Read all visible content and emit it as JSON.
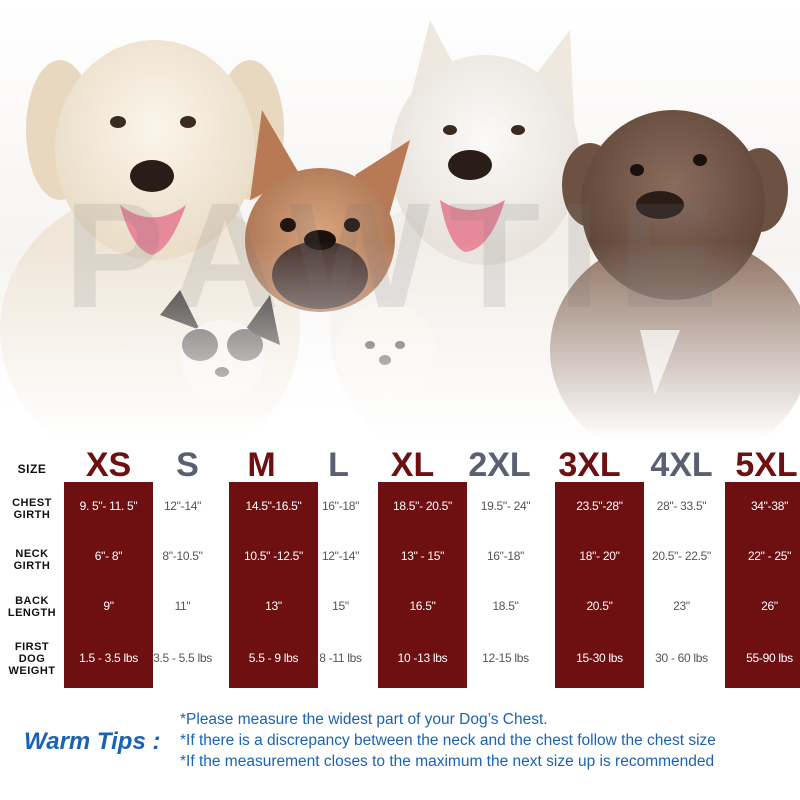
{
  "watermark": "PAWTIE",
  "table": {
    "size_label": "SIZE",
    "row_labels": {
      "chest": [
        "CHEST",
        "GIRTH"
      ],
      "neck": [
        "NECK",
        "GIRTH"
      ],
      "back": [
        "BACK",
        "LENGTH"
      ],
      "weight": [
        "FIRST",
        "DOG",
        "WEIGHT"
      ]
    },
    "sizes": [
      {
        "name": "XS",
        "chest": "9. 5\"- 11. 5\"",
        "neck": "6\"- 8\"",
        "back": "9\"",
        "weight": "1.5 - 3.5 lbs"
      },
      {
        "name": "S",
        "chest": "12\"-14\"",
        "neck": "8\"-10.5\"",
        "back": "11\"",
        "weight": "3.5 - 5.5 lbs"
      },
      {
        "name": "M",
        "chest": "14.5\"-16.5\"",
        "neck": "10.5\" -12.5\"",
        "back": "13\"",
        "weight": "5.5 - 9 lbs"
      },
      {
        "name": "L",
        "chest": "16\"-18\"",
        "neck": "12\"-14\"",
        "back": "15\"",
        "weight": "8 -11 lbs"
      },
      {
        "name": "XL",
        "chest": "18.5\"- 20.5\"",
        "neck": "13\" - 15\"",
        "back": "16.5\"",
        "weight": "10 -13 lbs"
      },
      {
        "name": "2XL",
        "chest": "19.5\"- 24\"",
        "neck": "16\"-18\"",
        "back": "18.5\"",
        "weight": "12-15 lbs"
      },
      {
        "name": "3XL",
        "chest": "23.5\"-28\"",
        "neck": "18\"- 20\"",
        "back": "20.5\"",
        "weight": "15-30 lbs"
      },
      {
        "name": "4XL",
        "chest": "28\"- 33.5\"",
        "neck": "20.5\"- 22.5\"",
        "back": "23\"",
        "weight": "30 - 60 lbs"
      },
      {
        "name": "5XL",
        "chest": "34\"-38\"",
        "neck": "22\" - 25\"",
        "back": "26\"",
        "weight": "55-90 lbs"
      }
    ]
  },
  "tips": {
    "title": "Warm Tips :",
    "lines": [
      "*Please measure the widest part of your Dog’s Chest.",
      "*If there is a discrepancy between the neck and the chest  follow the chest size",
      "*If the measurement closes to the maximum the next size up is recommended"
    ]
  },
  "colors": {
    "highlight": "#6e0f12",
    "muted_size": "#5a6070",
    "tips": "#1a62b3"
  }
}
